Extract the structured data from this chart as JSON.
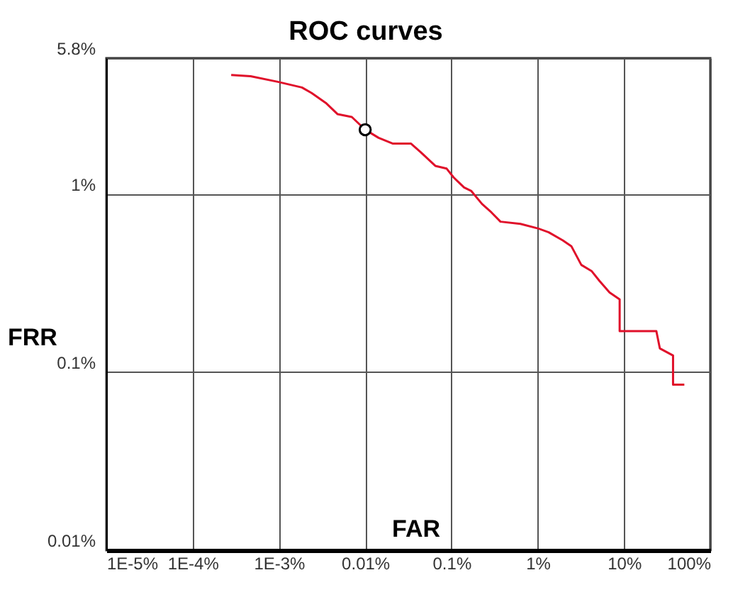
{
  "chart_data": {
    "type": "line",
    "title": "ROC curves",
    "xlabel": "FAR",
    "ylabel": "FRR",
    "log": "xy",
    "grid": true,
    "xlim": [
      1e-05,
      100
    ],
    "ylim": [
      0.01,
      5.8
    ],
    "xticks": [
      {
        "value": 1e-05,
        "label": "1E-5%"
      },
      {
        "value": 0.0001,
        "label": "1E-4%"
      },
      {
        "value": 0.001,
        "label": "1E-3%"
      },
      {
        "value": 0.01,
        "label": "0.01%"
      },
      {
        "value": 0.1,
        "label": "0.1%"
      },
      {
        "value": 1,
        "label": "1%"
      },
      {
        "value": 10,
        "label": "10%"
      },
      {
        "value": 100,
        "label": "100%"
      }
    ],
    "yticks": [
      {
        "value": 0.01,
        "label": "0.01%"
      },
      {
        "value": 0.1,
        "label": "0.1%"
      },
      {
        "value": 1,
        "label": "1%"
      },
      {
        "value": 5.8,
        "label": "5.8%"
      }
    ],
    "series": [
      {
        "color": "#e0102a",
        "x": [
          0.00028,
          0.00047,
          0.00097,
          0.00185,
          0.0024,
          0.0035,
          0.0048,
          0.007,
          0.01,
          0.0143,
          0.021,
          0.034,
          0.044,
          0.065,
          0.088,
          0.106,
          0.14,
          0.17,
          0.226,
          0.29,
          0.37,
          0.63,
          1.02,
          1.34,
          1.95,
          2.45,
          3.2,
          4.2,
          5.2,
          6.8,
          8.9,
          8.9,
          23.7,
          26,
          37,
          37,
          50
        ],
        "values": [
          4.67,
          4.59,
          4.27,
          3.97,
          3.69,
          3.25,
          2.81,
          2.71,
          2.3,
          2.07,
          1.92,
          1.92,
          1.72,
          1.44,
          1.39,
          1.24,
          1.09,
          1.04,
          0.88,
          0.79,
          0.7,
          0.68,
          0.64,
          0.61,
          0.55,
          0.51,
          0.4,
          0.37,
          0.325,
          0.28,
          0.256,
          0.17,
          0.17,
          0.136,
          0.124,
          0.085,
          0.085
        ]
      },
      {
        "type": "scatter",
        "color": "#000000",
        "marker": "circle",
        "x": [
          0.01
        ],
        "values": [
          2.3
        ]
      }
    ]
  }
}
